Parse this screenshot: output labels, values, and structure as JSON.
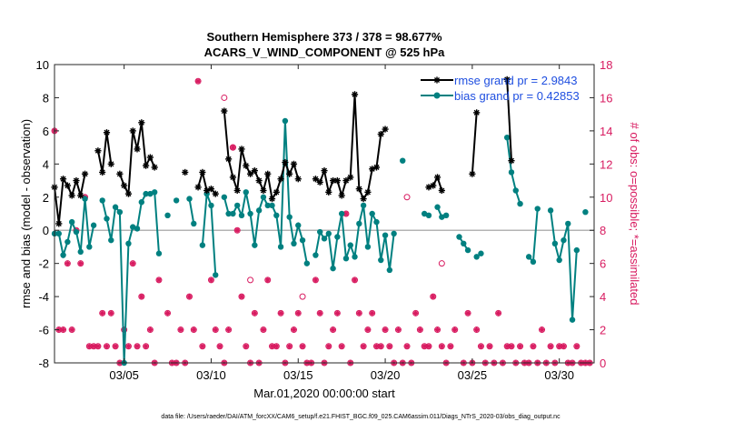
{
  "chart_data": {
    "type": "line",
    "title_line1": "Southern Hemisphere 373 / 378 = 98.677%",
    "title_line2": "ACARS_V_WIND_COMPONENT @ 525 hPa",
    "xlabel": "Mar.01,2020 00:00:00 start",
    "ylabel_left": "rmse and bias (model - observation)",
    "ylabel_right": "# of obs: o=possible; *=assimilated",
    "footer": "data file: /Users/raeder/DAI/ATM_forcXX/CAM6_setup/f.e21.FHIST_BGC.f09_025.CAM6assim.011/Diags_NTrS_2020-03/obs_diag_output.nc",
    "xlim": [
      1,
      32
    ],
    "ylim_left": [
      -8,
      10
    ],
    "ylim_right": [
      0,
      18
    ],
    "x_ticks": [
      5,
      10,
      15,
      20,
      25,
      30
    ],
    "x_tick_labels": [
      "03/05",
      "03/10",
      "03/15",
      "03/20",
      "03/25",
      "03/30"
    ],
    "y_ticks_left": [
      -8,
      -6,
      -4,
      -2,
      0,
      2,
      4,
      6,
      8,
      10
    ],
    "y_ticks_right": [
      0,
      2,
      4,
      6,
      8,
      10,
      12,
      14,
      16,
      18
    ],
    "legend": [
      {
        "label": "rmse grand pr = 2.9843",
        "series": "rmse"
      },
      {
        "label": "bias grand pr = 0.42853",
        "series": "bias"
      }
    ],
    "colors": {
      "rmse": "#000000",
      "bias": "#008080",
      "counts": "#d81b60",
      "zero_line": "#b4b4b4",
      "legend_text": "#1f4fe0"
    },
    "series": [
      {
        "name": "rmse",
        "points": [
          [
            1.0,
            2.6
          ],
          [
            1.25,
            0.4
          ],
          [
            1.5,
            3.1
          ],
          [
            1.75,
            2.7
          ],
          [
            2.0,
            2.1
          ],
          [
            2.25,
            3.0
          ],
          [
            2.5,
            2.1
          ],
          [
            2.75,
            3.4
          ],
          [
            3.5,
            4.8
          ],
          [
            3.75,
            3.5
          ],
          [
            4.0,
            5.9
          ],
          [
            4.25,
            4.0
          ],
          [
            4.75,
            3.4
          ],
          [
            5.0,
            2.7
          ],
          [
            5.25,
            2.2
          ],
          [
            5.5,
            6.0
          ],
          [
            5.75,
            4.9
          ],
          [
            6.0,
            6.5
          ],
          [
            6.25,
            3.9
          ],
          [
            6.5,
            4.4
          ],
          [
            6.75,
            3.8
          ],
          [
            8.5,
            3.5
          ],
          [
            9.25,
            2.6
          ],
          [
            9.5,
            3.5
          ],
          [
            9.75,
            2.4
          ],
          [
            10.0,
            2.5
          ],
          [
            10.25,
            2.2
          ],
          [
            10.75,
            7.2
          ],
          [
            11.0,
            4.3
          ],
          [
            11.25,
            3.2
          ],
          [
            11.5,
            2.4
          ],
          [
            11.75,
            4.9
          ],
          [
            12.0,
            3.9
          ],
          [
            12.25,
            3.4
          ],
          [
            12.5,
            3.6
          ],
          [
            12.75,
            3.0
          ],
          [
            13.0,
            2.4
          ],
          [
            13.25,
            3.4
          ],
          [
            13.5,
            1.9
          ],
          [
            13.75,
            2.3
          ],
          [
            14.0,
            3.1
          ],
          [
            14.25,
            4.1
          ],
          [
            14.5,
            3.4
          ],
          [
            14.75,
            4.0
          ],
          [
            15.0,
            3.1
          ],
          [
            16.0,
            3.1
          ],
          [
            16.25,
            2.9
          ],
          [
            16.5,
            3.6
          ],
          [
            16.75,
            2.3
          ],
          [
            17.0,
            3.0
          ],
          [
            17.25,
            3.0
          ],
          [
            17.5,
            2.1
          ],
          [
            17.75,
            3.0
          ],
          [
            18.0,
            3.2
          ],
          [
            18.25,
            8.2
          ],
          [
            18.5,
            2.5
          ],
          [
            18.75,
            1.9
          ],
          [
            19.0,
            2.3
          ],
          [
            19.25,
            3.7
          ],
          [
            19.5,
            3.8
          ],
          [
            19.75,
            5.8
          ],
          [
            20.0,
            6.1
          ],
          [
            22.5,
            2.6
          ],
          [
            22.75,
            2.7
          ],
          [
            23.0,
            3.2
          ],
          [
            23.25,
            2.4
          ],
          [
            25.0,
            3.4
          ],
          [
            25.25,
            7.1
          ],
          [
            27.0,
            9.1
          ],
          [
            27.25,
            4.2
          ]
        ]
      },
      {
        "name": "bias",
        "points": [
          [
            1.0,
            -0.2
          ],
          [
            1.25,
            -0.2
          ],
          [
            1.5,
            -1.5
          ],
          [
            1.75,
            -0.7
          ],
          [
            2.0,
            0.5
          ],
          [
            2.25,
            -0.1
          ],
          [
            2.5,
            -1.3
          ],
          [
            2.75,
            1.9
          ],
          [
            3.0,
            -1.0
          ],
          [
            3.25,
            0.3
          ],
          [
            3.75,
            1.8
          ],
          [
            4.0,
            0.7
          ],
          [
            4.25,
            -0.6
          ],
          [
            4.5,
            1.4
          ],
          [
            4.75,
            1.1
          ],
          [
            5.0,
            -8.0
          ],
          [
            5.25,
            -0.8
          ],
          [
            5.5,
            0.2
          ],
          [
            5.75,
            0.1
          ],
          [
            6.0,
            1.7
          ],
          [
            6.25,
            2.2
          ],
          [
            6.5,
            2.2
          ],
          [
            6.75,
            2.3
          ],
          [
            7.0,
            -1.4
          ],
          [
            7.5,
            0.9
          ],
          [
            8.0,
            1.8
          ],
          [
            8.75,
            1.9
          ],
          [
            9.0,
            0.4
          ],
          [
            9.5,
            -0.9
          ],
          [
            9.75,
            2.2
          ],
          [
            10.0,
            1.5
          ],
          [
            10.25,
            -2.7
          ],
          [
            10.75,
            2.0
          ],
          [
            11.0,
            1.0
          ],
          [
            11.25,
            1.0
          ],
          [
            11.5,
            1.5
          ],
          [
            11.75,
            0.9
          ],
          [
            12.0,
            2.3
          ],
          [
            12.25,
            1.0
          ],
          [
            12.5,
            -0.9
          ],
          [
            12.75,
            1.2
          ],
          [
            13.0,
            2.0
          ],
          [
            13.25,
            1.5
          ],
          [
            13.5,
            1.5
          ],
          [
            13.75,
            0.9
          ],
          [
            14.0,
            -1.0
          ],
          [
            14.25,
            6.6
          ],
          [
            14.5,
            0.8
          ],
          [
            14.75,
            -0.8
          ],
          [
            15.0,
            0.3
          ],
          [
            15.25,
            -0.6
          ],
          [
            15.5,
            -2.0
          ],
          [
            16.0,
            -1.5
          ],
          [
            16.25,
            -0.1
          ],
          [
            16.5,
            -0.5
          ],
          [
            16.75,
            -0.2
          ],
          [
            17.0,
            -2.3
          ],
          [
            17.25,
            -0.4
          ],
          [
            17.5,
            1.0
          ],
          [
            17.75,
            -1.7
          ],
          [
            18.0,
            -0.9
          ],
          [
            18.25,
            -1.6
          ],
          [
            18.5,
            0.4
          ],
          [
            18.75,
            1.5
          ],
          [
            19.0,
            -1.0
          ],
          [
            19.25,
            1.0
          ],
          [
            19.5,
            0.5
          ],
          [
            19.75,
            -1.8
          ],
          [
            20.0,
            -0.3
          ],
          [
            20.25,
            -2.4
          ],
          [
            20.5,
            -0.2
          ],
          [
            21.0,
            4.2
          ],
          [
            22.25,
            1.0
          ],
          [
            22.5,
            0.9
          ],
          [
            23.0,
            1.4
          ],
          [
            23.25,
            0.8
          ],
          [
            23.5,
            0.9
          ],
          [
            24.25,
            -0.4
          ],
          [
            24.5,
            -0.8
          ],
          [
            24.75,
            -1.2
          ],
          [
            25.25,
            -1.6
          ],
          [
            25.5,
            -1.4
          ],
          [
            27.0,
            5.6
          ],
          [
            27.25,
            3.5
          ],
          [
            27.5,
            2.4
          ],
          [
            27.75,
            1.6
          ],
          [
            28.25,
            -1.6
          ],
          [
            28.5,
            -1.9
          ],
          [
            28.75,
            1.3
          ],
          [
            29.5,
            1.2
          ],
          [
            29.75,
            -0.8
          ],
          [
            30.0,
            -1.8
          ],
          [
            30.25,
            -0.6
          ],
          [
            30.5,
            0.4
          ],
          [
            30.75,
            -5.4
          ],
          [
            31.0,
            -1.2
          ],
          [
            31.5,
            1.1
          ]
        ]
      }
    ],
    "counts_assimilated": [
      [
        1.0,
        14
      ],
      [
        1.25,
        2
      ],
      [
        1.5,
        2
      ],
      [
        1.75,
        6
      ],
      [
        2.0,
        2
      ],
      [
        2.25,
        8
      ],
      [
        2.5,
        6
      ],
      [
        2.75,
        10
      ],
      [
        3.0,
        1
      ],
      [
        3.25,
        1
      ],
      [
        3.5,
        1
      ],
      [
        3.75,
        3
      ],
      [
        4.0,
        1
      ],
      [
        4.25,
        3
      ],
      [
        4.5,
        1
      ],
      [
        4.75,
        0
      ],
      [
        5.0,
        2
      ],
      [
        5.25,
        1
      ],
      [
        5.5,
        6
      ],
      [
        5.75,
        1
      ],
      [
        6.0,
        4
      ],
      [
        6.25,
        1
      ],
      [
        6.5,
        2
      ],
      [
        6.75,
        0
      ],
      [
        7.0,
        5
      ],
      [
        7.5,
        3
      ],
      [
        7.75,
        0
      ],
      [
        8.0,
        0
      ],
      [
        8.25,
        2
      ],
      [
        8.5,
        0
      ],
      [
        8.75,
        4
      ],
      [
        9.0,
        2
      ],
      [
        9.25,
        17
      ],
      [
        9.5,
        1
      ],
      [
        10.0,
        5
      ],
      [
        10.25,
        2
      ],
      [
        10.5,
        1
      ],
      [
        10.75,
        0
      ],
      [
        11.0,
        2
      ],
      [
        11.25,
        13
      ],
      [
        11.5,
        8
      ],
      [
        11.75,
        4
      ],
      [
        12.0,
        1
      ],
      [
        12.25,
        0
      ],
      [
        12.5,
        3
      ],
      [
        12.75,
        0
      ],
      [
        13.0,
        2
      ],
      [
        13.25,
        5
      ],
      [
        13.5,
        1
      ],
      [
        13.75,
        1
      ],
      [
        14.0,
        3
      ],
      [
        14.25,
        0
      ],
      [
        14.5,
        1
      ],
      [
        14.75,
        2
      ],
      [
        15.0,
        3
      ],
      [
        15.25,
        1
      ],
      [
        15.5,
        0
      ],
      [
        15.75,
        0
      ],
      [
        16.0,
        5
      ],
      [
        16.25,
        3
      ],
      [
        16.5,
        0
      ],
      [
        16.75,
        1
      ],
      [
        17.0,
        2
      ],
      [
        17.25,
        3
      ],
      [
        17.5,
        1
      ],
      [
        17.75,
        9
      ],
      [
        18.0,
        0
      ],
      [
        18.25,
        5
      ],
      [
        18.5,
        3
      ],
      [
        18.75,
        1
      ],
      [
        19.0,
        2
      ],
      [
        19.25,
        3
      ],
      [
        19.5,
        1
      ],
      [
        19.75,
        1
      ],
      [
        20.0,
        2
      ],
      [
        20.25,
        1
      ],
      [
        20.5,
        0
      ],
      [
        20.75,
        2
      ],
      [
        21.0,
        0
      ],
      [
        21.25,
        1
      ],
      [
        21.5,
        0
      ],
      [
        21.75,
        3
      ],
      [
        22.0,
        2
      ],
      [
        22.25,
        1
      ],
      [
        22.5,
        1
      ],
      [
        22.75,
        4
      ],
      [
        23.0,
        2
      ],
      [
        23.25,
        1
      ],
      [
        23.5,
        0
      ],
      [
        23.75,
        1
      ],
      [
        24.0,
        2
      ],
      [
        24.5,
        0
      ],
      [
        24.75,
        3
      ],
      [
        25.0,
        0
      ],
      [
        25.25,
        2
      ],
      [
        25.5,
        1
      ],
      [
        25.75,
        0
      ],
      [
        26.0,
        1
      ],
      [
        26.25,
        0
      ],
      [
        26.5,
        3
      ],
      [
        26.75,
        0
      ],
      [
        27.0,
        1
      ],
      [
        27.25,
        1
      ],
      [
        27.5,
        0
      ],
      [
        27.75,
        1
      ],
      [
        28.0,
        0
      ],
      [
        28.25,
        0
      ],
      [
        28.5,
        1
      ],
      [
        28.75,
        0
      ],
      [
        29.0,
        2
      ],
      [
        29.25,
        0
      ],
      [
        29.5,
        1
      ],
      [
        29.75,
        0
      ],
      [
        30.0,
        1
      ],
      [
        30.25,
        1
      ],
      [
        30.5,
        0
      ],
      [
        30.75,
        0
      ],
      [
        31.0,
        1
      ],
      [
        31.25,
        0
      ],
      [
        31.5,
        0
      ],
      [
        31.75,
        0
      ]
    ],
    "counts_possible_only": [
      [
        10.75,
        16
      ],
      [
        11.25,
        13
      ],
      [
        12.25,
        5
      ],
      [
        15.25,
        4
      ],
      [
        21.25,
        10
      ],
      [
        23.25,
        6
      ]
    ]
  }
}
